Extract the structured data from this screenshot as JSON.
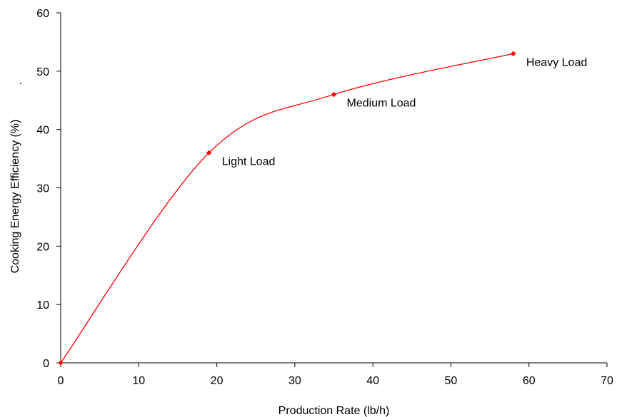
{
  "chart_data": {
    "type": "line",
    "title": "",
    "xlabel": "Production Rate (lb/h)",
    "ylabel": "Cooking Energy Efficiency (%)",
    "xlim": [
      0,
      70
    ],
    "ylim": [
      0,
      60
    ],
    "x_ticks": [
      "0",
      "10",
      "20",
      "30",
      "40",
      "50",
      "60",
      "70"
    ],
    "y_ticks": [
      "0",
      "10",
      "20",
      "30",
      "40",
      "50",
      "60"
    ],
    "grid": false,
    "legend": "none",
    "series": [
      {
        "x": [
          0,
          19,
          35,
          58
        ],
        "y": [
          0,
          36,
          46,
          53
        ],
        "color": "#ff0000",
        "marker": "diamond",
        "smooth": true
      }
    ],
    "annotations": [
      {
        "text": "Light Load",
        "x": 19,
        "y": 36
      },
      {
        "text": "Medium Load",
        "x": 35,
        "y": 46
      },
      {
        "text": "Heavy Load",
        "x": 58,
        "y": 53
      }
    ],
    "extra_marks": [
      "."
    ]
  }
}
